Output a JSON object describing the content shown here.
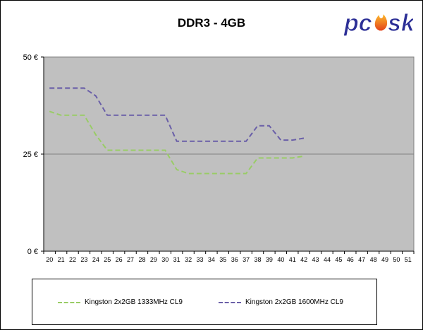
{
  "chart_data": {
    "type": "line",
    "title": "DDR3 - 4GB",
    "xlabel": "",
    "ylabel": "",
    "x": [
      20,
      21,
      22,
      23,
      24,
      25,
      26,
      27,
      28,
      29,
      30,
      31,
      32,
      33,
      34,
      35,
      36,
      37,
      38,
      39,
      40,
      41,
      42,
      43,
      44,
      45,
      46,
      47,
      48,
      49,
      50,
      51
    ],
    "ylim": [
      0,
      50
    ],
    "yticks": [
      0,
      25,
      50
    ],
    "ytick_labels": [
      "0 €",
      "25 €",
      "50 €"
    ],
    "grid": "horizontal line at 25 €",
    "legend_position": "bottom",
    "series": [
      {
        "name": "Kingston 2x2GB 1333MHz CL9",
        "color": "#99cc66",
        "values": [
          36,
          35,
          35,
          35,
          30,
          26,
          26,
          26,
          26,
          26,
          26,
          21,
          20,
          20,
          20,
          20,
          20,
          20,
          24,
          24,
          24,
          24,
          24.5,
          null,
          null,
          null,
          null,
          null,
          null,
          null,
          null,
          null
        ]
      },
      {
        "name": "Kingston 2x2GB 1600MHz CL9",
        "color": "#6a5fa8",
        "values": [
          42,
          42,
          42,
          42,
          40,
          35,
          35,
          35,
          35,
          35,
          35,
          28.3,
          28.3,
          28.3,
          28.3,
          28.3,
          28.3,
          28.3,
          32.3,
          32.3,
          28.6,
          28.6,
          29.1,
          null,
          null,
          null,
          null,
          null,
          null,
          null,
          null,
          null
        ]
      }
    ]
  },
  "logo": {
    "text": "pcsk",
    "colors": {
      "text": "#2c2f96",
      "flame": "#f08a1c"
    }
  }
}
